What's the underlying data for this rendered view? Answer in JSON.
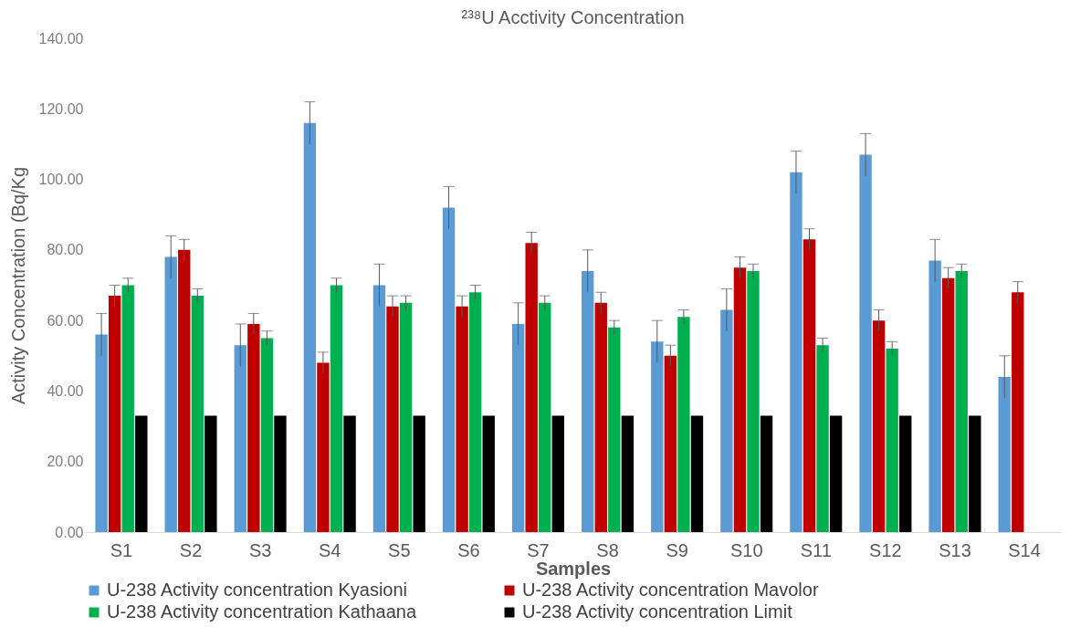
{
  "chart_data": {
    "type": "bar",
    "title": "²³⁸U Acctivity Concentration",
    "xlabel": "Samples",
    "ylabel": "Activity Concentration  (Bq/Kg",
    "categories": [
      "S1",
      "S2",
      "S3",
      "S4",
      "S5",
      "S6",
      "S7",
      "S8",
      "S9",
      "S10",
      "S11",
      "S12",
      "S13",
      "S14"
    ],
    "series": [
      {
        "name": "U-238 Activity concentration Kyasioni",
        "color": "#5b9bd5",
        "values": [
          56,
          78,
          53,
          116,
          70,
          92,
          59,
          74,
          54,
          63,
          102,
          107,
          77,
          44
        ],
        "errors": [
          6,
          6,
          6,
          6,
          6,
          6,
          6,
          6,
          6,
          6,
          6,
          6,
          6,
          6
        ]
      },
      {
        "name": "U-238 Activity concentration Mavolor",
        "color": "#c00000",
        "values": [
          67,
          80,
          59,
          48,
          64,
          64,
          82,
          65,
          50,
          75,
          83,
          60,
          72,
          68
        ],
        "errors": [
          3,
          3,
          3,
          3,
          3,
          3,
          3,
          3,
          3,
          3,
          3,
          3,
          3,
          3
        ]
      },
      {
        "name": "U-238 Activity concentration Kathaana",
        "color": "#00b050",
        "values": [
          70,
          67,
          55,
          70,
          65,
          68,
          65,
          58,
          61,
          74,
          53,
          52,
          74,
          null
        ],
        "errors": [
          2,
          2,
          2,
          2,
          2,
          2,
          2,
          2,
          2,
          2,
          2,
          2,
          2,
          null
        ]
      },
      {
        "name": "U-238 Activity concentration Limit",
        "color": "#000000",
        "values": [
          33,
          33,
          33,
          33,
          33,
          33,
          33,
          33,
          33,
          33,
          33,
          33,
          33,
          null
        ]
      }
    ],
    "ylim": [
      0,
      140
    ],
    "yticks": [
      {
        "value": 0,
        "label": "0.00"
      },
      {
        "value": 20,
        "label": "20.00"
      },
      {
        "value": 40,
        "label": "40.00"
      },
      {
        "value": 60,
        "label": "60.00"
      },
      {
        "value": 80,
        "label": "80.00"
      },
      {
        "value": 100,
        "label": "100.00"
      },
      {
        "value": 120,
        "label": "120.00"
      },
      {
        "value": 140,
        "label": "140.00"
      }
    ],
    "grid": false,
    "legend": "bottom"
  }
}
